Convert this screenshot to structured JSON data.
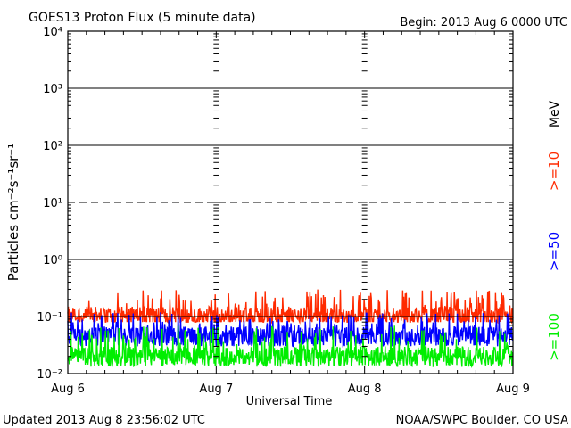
{
  "header": {
    "title": "GOES13 Proton Flux (5 minute data)",
    "begin": "Begin: 2013 Aug 6 0000 UTC"
  },
  "footer": {
    "updated": "Updated 2013 Aug  8 23:56:02 UTC",
    "credit": "NOAA/SWPC Boulder, CO USA"
  },
  "chart_data": {
    "type": "line",
    "title": "GOES13 Proton Flux (5 minute data)",
    "xlabel": "Universal Time",
    "ylabel": "Particles cm⁻²s⁻¹sr⁻¹",
    "yscale": "log",
    "ylim": [
      0.01,
      10000
    ],
    "xlim": [
      0,
      3
    ],
    "x_ticks": [
      "Aug 6",
      "Aug 7",
      "Aug 8",
      "Aug 9"
    ],
    "y_ticks": [
      "10⁴",
      "10³",
      "10²",
      "10¹",
      "10⁰",
      "10⁻¹",
      "10⁻²"
    ],
    "y_tick_values": [
      10000,
      1000,
      100,
      10,
      1,
      0.1,
      0.01
    ],
    "x_unit": "days since start of plot",
    "threshold_line": {
      "value": 10,
      "style": "dashed"
    },
    "grid": true,
    "legend": {
      "units": "MeV",
      "entries": [
        {
          "label": ">=10",
          "color": "#ff2a00"
        },
        {
          "label": ">=50",
          "color": "#0000ff"
        },
        {
          "label": ">=100",
          "color": "#00ee00"
        }
      ]
    },
    "series": [
      {
        "name": ">=10",
        "color": "#ff2a00",
        "typical": 0.1,
        "min": 0.08,
        "max": 0.3
      },
      {
        "name": ">=50",
        "color": "#0000ff",
        "typical": 0.045,
        "min": 0.03,
        "max": 0.12
      },
      {
        "name": ">=100",
        "color": "#00ee00",
        "typical": 0.02,
        "min": 0.013,
        "max": 0.07
      }
    ]
  }
}
